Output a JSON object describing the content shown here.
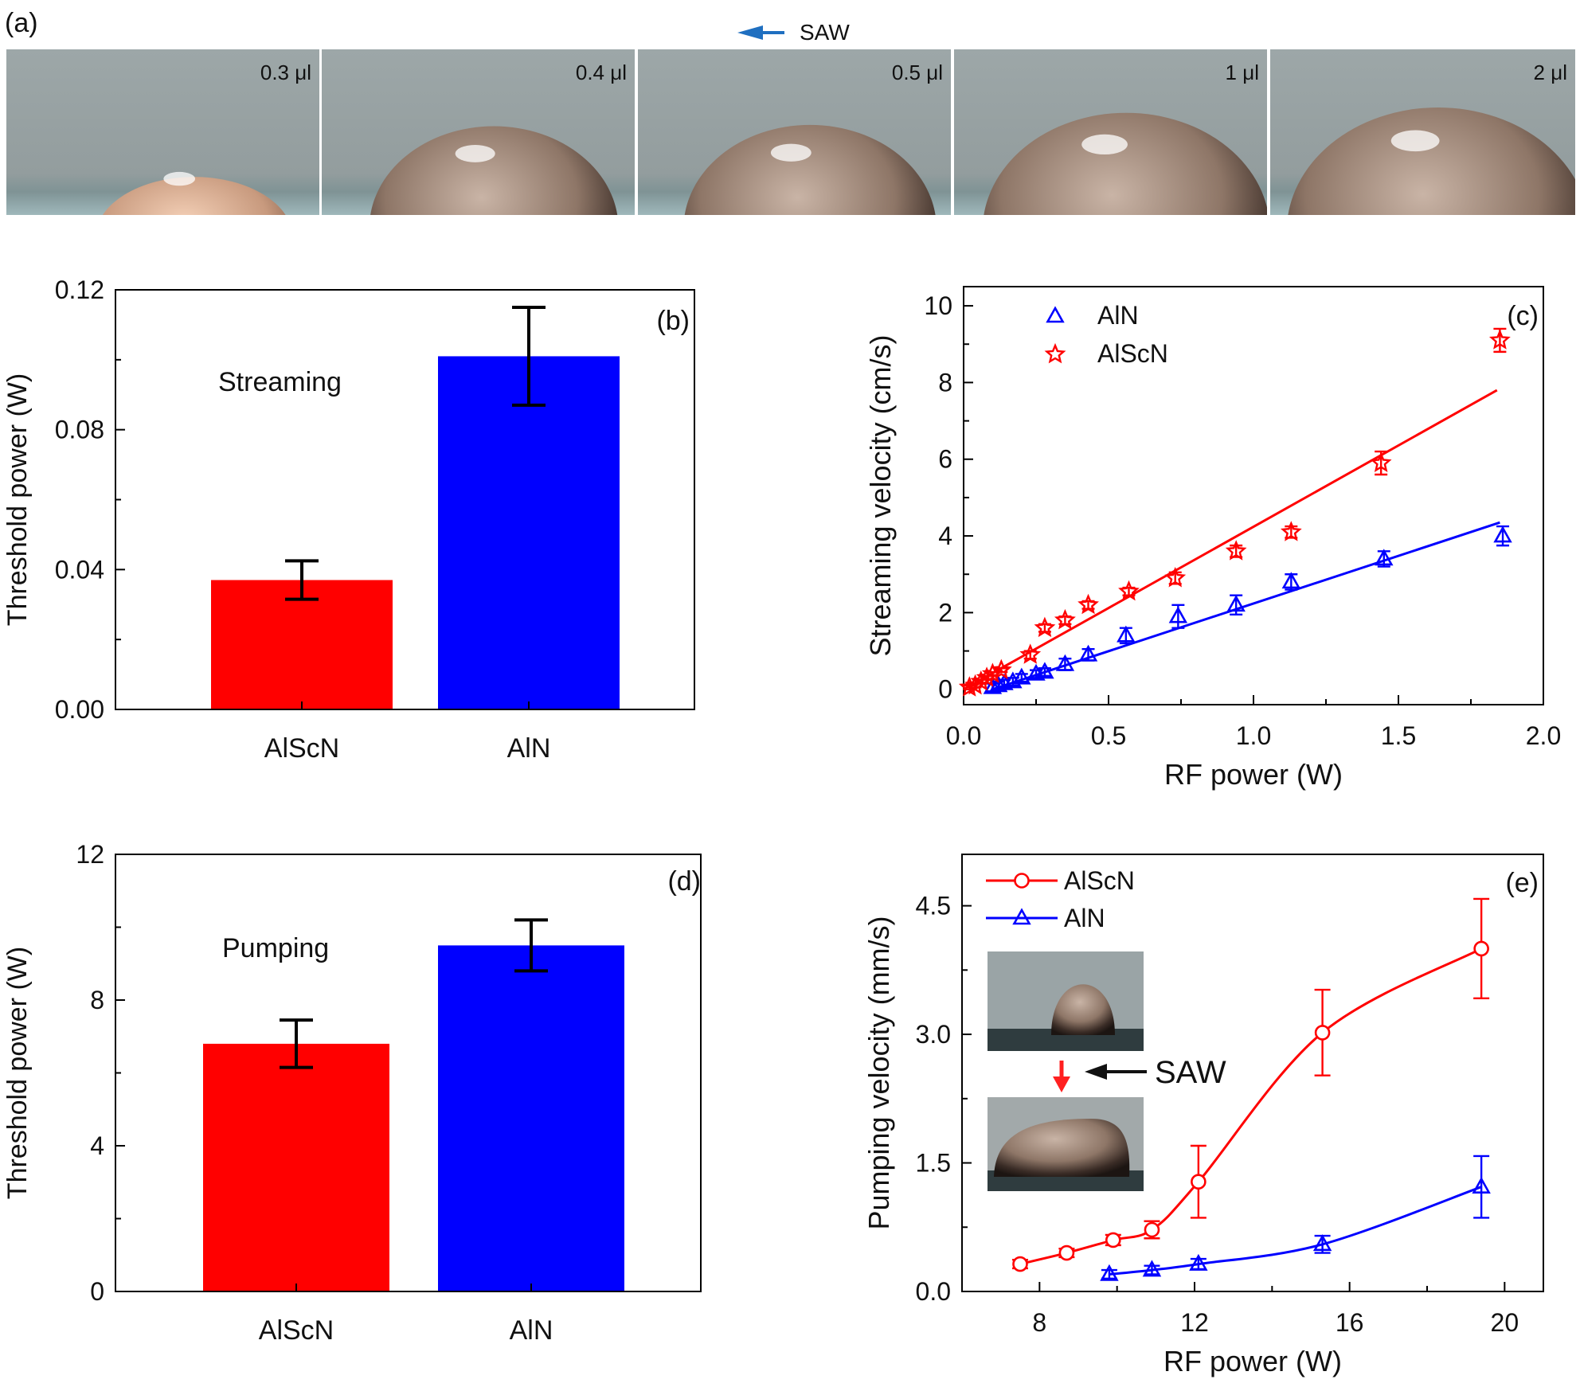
{
  "panel_a": {
    "label": "(a)",
    "saw_label": "SAW",
    "photos": [
      {
        "volume": "0.3 μl",
        "drop_size": 0.45
      },
      {
        "volume": "0.4 μl",
        "drop_size": 0.72
      },
      {
        "volume": "0.5 μl",
        "drop_size": 0.74
      },
      {
        "volume": "1 μl",
        "drop_size": 0.92
      },
      {
        "volume": "2 μl",
        "drop_size": 1.0
      }
    ]
  },
  "colors": {
    "red": "#ff0000",
    "blue": "#0000ff",
    "arrow_blue": "#1f6fc0",
    "frame": "#000000"
  },
  "chart_data": [
    {
      "id": "b",
      "type": "bar",
      "panel_label": "(b)",
      "annotation": "Streaming",
      "categories": [
        "AlScN",
        "AlN"
      ],
      "values": [
        0.037,
        0.101
      ],
      "errors": [
        0.0055,
        0.014
      ],
      "bar_colors": [
        "#ff0000",
        "#0000ff"
      ],
      "ylabel": "Threshold power (W)",
      "ylim": [
        0,
        0.12
      ],
      "yticks": [
        "0.00",
        "0.04",
        "0.08",
        "0.12"
      ],
      "ytick_values": [
        0,
        0.04,
        0.08,
        0.12
      ]
    },
    {
      "id": "c",
      "type": "scatter",
      "panel_label": "(c)",
      "xlabel": "RF power (W)",
      "ylabel": "Streaming velocity (cm/s)",
      "xlim": [
        0,
        2.0
      ],
      "ylim": [
        -0.4,
        10.5
      ],
      "xticks": [
        "0.0",
        "0.5",
        "1.0",
        "1.5",
        "2.0"
      ],
      "xtick_values": [
        0,
        0.5,
        1.0,
        1.5,
        2.0
      ],
      "yticks": [
        "0",
        "2",
        "4",
        "6",
        "8",
        "10"
      ],
      "ytick_values": [
        0,
        2,
        4,
        6,
        8,
        10
      ],
      "legend_position": "top-left",
      "series": [
        {
          "name": "AlN",
          "color": "#0000ff",
          "marker": "triangle-open",
          "x": [
            0.1,
            0.12,
            0.14,
            0.17,
            0.2,
            0.25,
            0.28,
            0.35,
            0.43,
            0.56,
            0.74,
            0.94,
            1.13,
            1.45,
            1.86
          ],
          "y": [
            0.05,
            0.1,
            0.15,
            0.2,
            0.3,
            0.4,
            0.45,
            0.65,
            0.9,
            1.4,
            1.9,
            2.2,
            2.8,
            3.4,
            4.0
          ],
          "err": [
            0.1,
            0.1,
            0.1,
            0.1,
            0.1,
            0.1,
            0.1,
            0.15,
            0.15,
            0.2,
            0.3,
            0.25,
            0.2,
            0.2,
            0.25
          ],
          "fit": [
            [
              0.1,
              0.0
            ],
            [
              1.85,
              4.35
            ]
          ]
        },
        {
          "name": "AlScN",
          "color": "#ff0000",
          "marker": "star-open",
          "x": [
            0.02,
            0.04,
            0.06,
            0.08,
            0.1,
            0.13,
            0.23,
            0.28,
            0.35,
            0.43,
            0.57,
            0.73,
            0.94,
            1.13,
            1.44,
            1.85
          ],
          "y": [
            0.05,
            0.1,
            0.2,
            0.3,
            0.4,
            0.5,
            0.9,
            1.6,
            1.8,
            2.2,
            2.55,
            2.9,
            3.6,
            4.1,
            5.9,
            9.1
          ],
          "err": [
            0.05,
            0.05,
            0.05,
            0.05,
            0.05,
            0.05,
            0.1,
            0.1,
            0.1,
            0.1,
            0.1,
            0.15,
            0.15,
            0.15,
            0.3,
            0.3
          ],
          "fit": [
            [
              0.0,
              0.0
            ],
            [
              1.84,
              7.8
            ]
          ]
        }
      ]
    },
    {
      "id": "d",
      "type": "bar",
      "panel_label": "(d)",
      "annotation": "Pumping",
      "categories": [
        "AlScN",
        "AlN"
      ],
      "values": [
        6.8,
        9.5
      ],
      "errors": [
        0.65,
        0.7
      ],
      "bar_colors": [
        "#ff0000",
        "#0000ff"
      ],
      "ylabel": "Threshold power (W)",
      "ylim": [
        0,
        12
      ],
      "yticks": [
        "0",
        "4",
        "8",
        "12"
      ],
      "ytick_values": [
        0,
        4,
        8,
        12
      ]
    },
    {
      "id": "e",
      "type": "line",
      "panel_label": "(e)",
      "xlabel": "RF power (W)",
      "ylabel": "Pumping velocity (mm/s)",
      "xlim": [
        6,
        21
      ],
      "ylim": [
        0,
        5.1
      ],
      "xticks": [
        "8",
        "12",
        "16",
        "20"
      ],
      "xtick_values": [
        8,
        12,
        16,
        20
      ],
      "yticks": [
        "0.0",
        "1.5",
        "3.0",
        "4.5"
      ],
      "ytick_values": [
        0,
        1.5,
        3.0,
        4.5
      ],
      "legend_position": "top-left",
      "inset_saw_label": "SAW",
      "series": [
        {
          "name": "AlScN",
          "color": "#ff0000",
          "marker": "circle-open",
          "x": [
            7.5,
            8.7,
            9.9,
            10.9,
            12.1,
            15.3,
            19.4
          ],
          "y": [
            0.32,
            0.45,
            0.6,
            0.72,
            1.28,
            3.02,
            4.0
          ],
          "err": [
            0.05,
            0.05,
            0.06,
            0.1,
            0.42,
            0.5,
            0.58
          ]
        },
        {
          "name": "AlN",
          "color": "#0000ff",
          "marker": "triangle-open",
          "x": [
            9.8,
            10.9,
            12.1,
            15.3,
            19.4
          ],
          "y": [
            0.2,
            0.25,
            0.32,
            0.55,
            1.22
          ],
          "err": [
            0.05,
            0.05,
            0.06,
            0.1,
            0.36
          ]
        }
      ]
    }
  ]
}
